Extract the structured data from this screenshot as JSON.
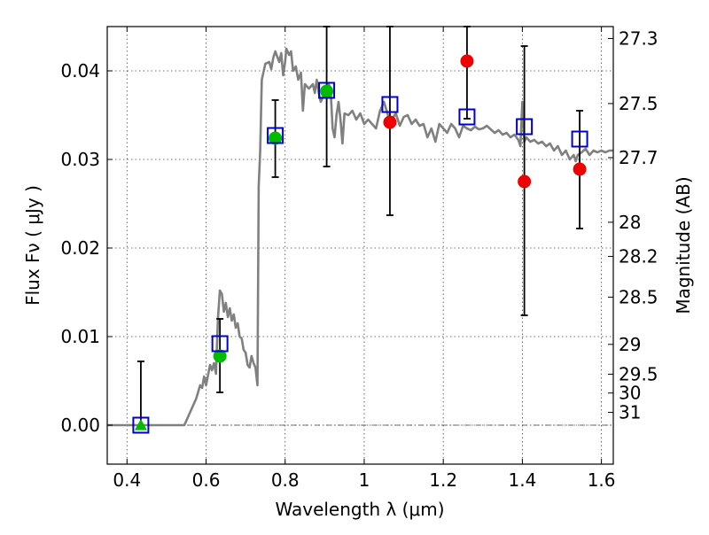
{
  "chart_data": {
    "type": "scatter",
    "x_axis": {
      "label": "Wavelength  λ (μm)",
      "range": [
        0.35,
        1.63
      ],
      "ticks": [
        {
          "value": 0.4,
          "label": "0.4"
        },
        {
          "value": 0.6,
          "label": "0.6"
        },
        {
          "value": 0.8,
          "label": "0.8"
        },
        {
          "value": 1.0,
          "label": "1"
        },
        {
          "value": 1.2,
          "label": "1.2"
        },
        {
          "value": 1.4,
          "label": "1.4"
        },
        {
          "value": 1.6,
          "label": "1.6"
        }
      ]
    },
    "y_axis": {
      "label": "Flux  Fν  ( μJy )",
      "range": [
        -0.0044,
        0.045
      ],
      "ticks": [
        {
          "value": 0.0,
          "label": "0.00"
        },
        {
          "value": 0.01,
          "label": "0.01"
        },
        {
          "value": 0.02,
          "label": "0.02"
        },
        {
          "value": 0.03,
          "label": "0.03"
        },
        {
          "value": 0.04,
          "label": "0.04"
        }
      ]
    },
    "y2_axis": {
      "label": "Magnitude (AB)",
      "ticks": [
        {
          "value": 27.3,
          "label": "27.3"
        },
        {
          "value": 27.5,
          "label": "27.5"
        },
        {
          "value": 27.7,
          "label": "27.7"
        },
        {
          "value": 28,
          "label": "28"
        },
        {
          "value": 28.2,
          "label": "28.2"
        },
        {
          "value": 28.5,
          "label": "28.5"
        },
        {
          "value": 29,
          "label": "29"
        },
        {
          "value": 29.5,
          "label": "29.5"
        },
        {
          "value": 30,
          "label": "30"
        },
        {
          "value": 31,
          "label": "31"
        }
      ]
    },
    "grid": true,
    "zero_line": true,
    "model_spectrum": {
      "color": "#808080",
      "points": [
        [
          0.35,
          0.0
        ],
        [
          0.52,
          0.0
        ],
        [
          0.545,
          0.0
        ],
        [
          0.56,
          0.0015
        ],
        [
          0.575,
          0.003
        ],
        [
          0.585,
          0.0045
        ],
        [
          0.59,
          0.0042
        ],
        [
          0.595,
          0.0055
        ],
        [
          0.6,
          0.0045
        ],
        [
          0.61,
          0.0068
        ],
        [
          0.615,
          0.0062
        ],
        [
          0.62,
          0.007
        ],
        [
          0.625,
          0.0058
        ],
        [
          0.63,
          0.012
        ],
        [
          0.635,
          0.0152
        ],
        [
          0.64,
          0.0148
        ],
        [
          0.645,
          0.0128
        ],
        [
          0.65,
          0.0138
        ],
        [
          0.655,
          0.0122
        ],
        [
          0.66,
          0.0132
        ],
        [
          0.665,
          0.0118
        ],
        [
          0.67,
          0.0125
        ],
        [
          0.675,
          0.011
        ],
        [
          0.68,
          0.0115
        ],
        [
          0.685,
          0.01
        ],
        [
          0.69,
          0.0098
        ],
        [
          0.695,
          0.0085
        ],
        [
          0.7,
          0.0082
        ],
        [
          0.705,
          0.0068
        ],
        [
          0.71,
          0.0065
        ],
        [
          0.715,
          0.0078
        ],
        [
          0.72,
          0.007
        ],
        [
          0.725,
          0.0065
        ],
        [
          0.73,
          0.0045
        ],
        [
          0.733,
          0.027
        ],
        [
          0.737,
          0.031
        ],
        [
          0.741,
          0.039
        ],
        [
          0.75,
          0.0408
        ],
        [
          0.76,
          0.041
        ],
        [
          0.765,
          0.0402
        ],
        [
          0.77,
          0.0415
        ],
        [
          0.775,
          0.0422
        ],
        [
          0.785,
          0.041
        ],
        [
          0.79,
          0.042
        ],
        [
          0.795,
          0.0395
        ],
        [
          0.8,
          0.041
        ],
        [
          0.803,
          0.0425
        ],
        [
          0.81,
          0.0418
        ],
        [
          0.815,
          0.0422
        ],
        [
          0.82,
          0.04
        ],
        [
          0.827,
          0.0405
        ],
        [
          0.833,
          0.039
        ],
        [
          0.84,
          0.0398
        ],
        [
          0.845,
          0.0355
        ],
        [
          0.85,
          0.0385
        ],
        [
          0.86,
          0.038
        ],
        [
          0.87,
          0.0385
        ],
        [
          0.875,
          0.0375
        ],
        [
          0.88,
          0.039
        ],
        [
          0.885,
          0.0375
        ],
        [
          0.89,
          0.0365
        ],
        [
          0.9,
          0.0375
        ],
        [
          0.91,
          0.0385
        ],
        [
          0.915,
          0.038
        ],
        [
          0.92,
          0.0335
        ],
        [
          0.925,
          0.0325
        ],
        [
          0.93,
          0.035
        ],
        [
          0.935,
          0.0365
        ],
        [
          0.94,
          0.0345
        ],
        [
          0.945,
          0.0318
        ],
        [
          0.95,
          0.0352
        ],
        [
          0.96,
          0.035
        ],
        [
          0.97,
          0.0355
        ],
        [
          0.98,
          0.0345
        ],
        [
          0.99,
          0.0352
        ],
        [
          1.0,
          0.034
        ],
        [
          1.01,
          0.0345
        ],
        [
          1.02,
          0.034
        ],
        [
          1.03,
          0.0335
        ],
        [
          1.04,
          0.0355
        ],
        [
          1.05,
          0.0365
        ],
        [
          1.06,
          0.035
        ],
        [
          1.07,
          0.0345
        ],
        [
          1.08,
          0.0352
        ],
        [
          1.09,
          0.0338
        ],
        [
          1.1,
          0.0348
        ],
        [
          1.11,
          0.035
        ],
        [
          1.12,
          0.034
        ],
        [
          1.13,
          0.0345
        ],
        [
          1.14,
          0.0338
        ],
        [
          1.15,
          0.034
        ],
        [
          1.16,
          0.0325
        ],
        [
          1.17,
          0.0335
        ],
        [
          1.18,
          0.032
        ],
        [
          1.19,
          0.034
        ],
        [
          1.2,
          0.0335
        ],
        [
          1.21,
          0.033
        ],
        [
          1.22,
          0.034
        ],
        [
          1.23,
          0.0335
        ],
        [
          1.24,
          0.0325
        ],
        [
          1.25,
          0.0338
        ],
        [
          1.26,
          0.0335
        ],
        [
          1.27,
          0.0333
        ],
        [
          1.28,
          0.0337
        ],
        [
          1.29,
          0.0334
        ],
        [
          1.3,
          0.0335
        ],
        [
          1.31,
          0.0338
        ],
        [
          1.32,
          0.0334
        ],
        [
          1.33,
          0.033
        ],
        [
          1.34,
          0.0333
        ],
        [
          1.35,
          0.0328
        ],
        [
          1.36,
          0.033
        ],
        [
          1.37,
          0.0325
        ],
        [
          1.38,
          0.0328
        ],
        [
          1.39,
          0.0322
        ],
        [
          1.395,
          0.0315
        ],
        [
          1.4,
          0.0365
        ],
        [
          1.405,
          0.032
        ],
        [
          1.41,
          0.0325
        ],
        [
          1.42,
          0.032
        ],
        [
          1.43,
          0.0322
        ],
        [
          1.44,
          0.0318
        ],
        [
          1.45,
          0.032
        ],
        [
          1.46,
          0.0315
        ],
        [
          1.47,
          0.0318
        ],
        [
          1.48,
          0.031
        ],
        [
          1.49,
          0.0315
        ],
        [
          1.5,
          0.0305
        ],
        [
          1.51,
          0.031
        ],
        [
          1.52,
          0.03
        ],
        [
          1.53,
          0.0305
        ],
        [
          1.535,
          0.0298
        ],
        [
          1.54,
          0.0305
        ],
        [
          1.55,
          0.0308
        ],
        [
          1.56,
          0.0312
        ],
        [
          1.57,
          0.0305
        ],
        [
          1.58,
          0.031
        ],
        [
          1.59,
          0.0308
        ],
        [
          1.6,
          0.031
        ],
        [
          1.61,
          0.0308
        ],
        [
          1.62,
          0.031
        ],
        [
          1.63,
          0.031
        ]
      ]
    },
    "series": [
      {
        "marker": "square-open",
        "color": "#0000cc",
        "points": [
          {
            "x": 0.435,
            "y": 0.0
          },
          {
            "x": 0.635,
            "y": 0.0092
          },
          {
            "x": 0.775,
            "y": 0.0327
          },
          {
            "x": 0.905,
            "y": 0.0378
          },
          {
            "x": 1.065,
            "y": 0.0362
          },
          {
            "x": 1.26,
            "y": 0.0348
          },
          {
            "x": 1.405,
            "y": 0.0337
          },
          {
            "x": 1.545,
            "y": 0.0323
          }
        ]
      },
      {
        "marker": "circle",
        "color_scheme": {
          "detected": "#00bb00",
          "low_significance": "#ee0000"
        },
        "points": [
          {
            "x": 0.435,
            "y": 0.0,
            "yerr_low": 0.0,
            "yerr_high": 0.0072,
            "marker": "triangle",
            "color": "#00bb00"
          },
          {
            "x": 0.635,
            "y": 0.0078,
            "yerr_low": 0.0041,
            "yerr_high": 0.0042,
            "color": "#00bb00"
          },
          {
            "x": 0.775,
            "y": 0.0324,
            "yerr_low": 0.0044,
            "yerr_high": 0.0043,
            "color": "#00bb00"
          },
          {
            "x": 0.905,
            "y": 0.0377,
            "yerr_low": 0.0085,
            "yerr_high": 0.0073,
            "color": "#00bb00"
          },
          {
            "x": 1.065,
            "y": 0.0342,
            "yerr_low": 0.0105,
            "yerr_high": 0.0108,
            "color": "#ee0000"
          },
          {
            "x": 1.26,
            "y": 0.0411,
            "yerr_low": 0.0065,
            "yerr_high": 0.0039,
            "color": "#ee0000"
          },
          {
            "x": 1.405,
            "y": 0.0275,
            "yerr_low": 0.0151,
            "yerr_high": 0.0153,
            "color": "#ee0000"
          },
          {
            "x": 1.545,
            "y": 0.0289,
            "yerr_low": 0.0067,
            "yerr_high": 0.0066,
            "color": "#ee0000"
          }
        ]
      }
    ]
  }
}
